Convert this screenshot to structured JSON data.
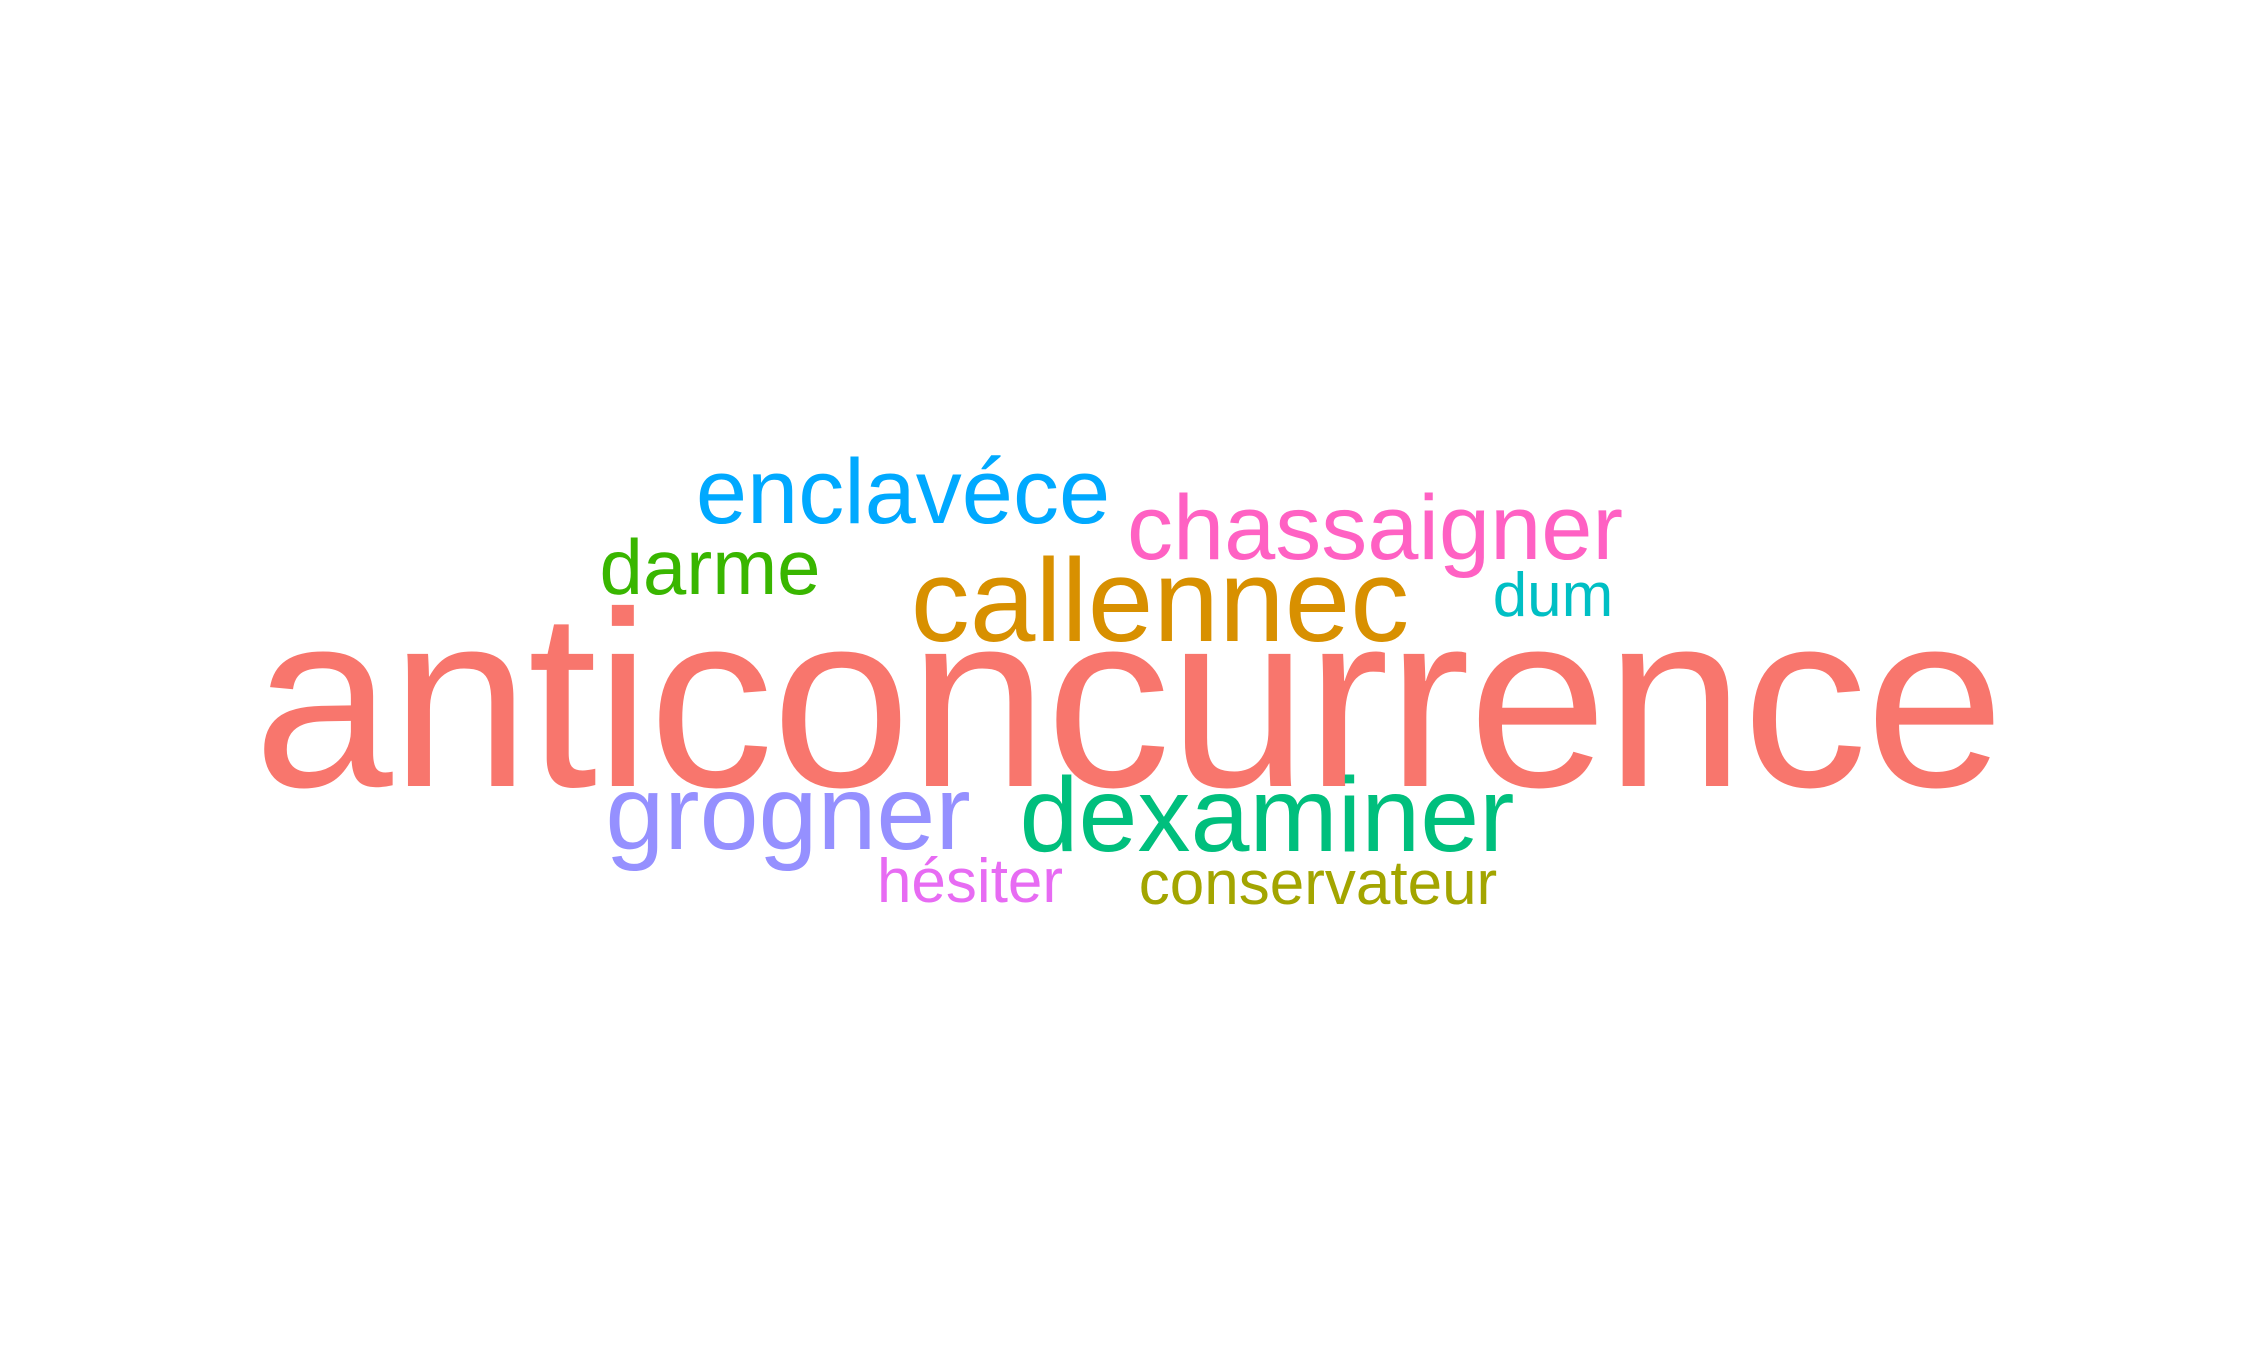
{
  "words": [
    {
      "text": "anticoncurrence",
      "color": "#F8766D"
    },
    {
      "text": "enclavéce",
      "color": "#00A9FF"
    },
    {
      "text": "chassaigner",
      "color": "#FF61C3"
    },
    {
      "text": "darme",
      "color": "#39B600"
    },
    {
      "text": "callennec",
      "color": "#D89000"
    },
    {
      "text": "dum",
      "color": "#00BFC4"
    },
    {
      "text": "grogner",
      "color": "#9590FF"
    },
    {
      "text": "dexaminer",
      "color": "#00BF7D"
    },
    {
      "text": "hésiter",
      "color": "#E76BF3"
    },
    {
      "text": "conservateur",
      "color": "#A3A500"
    }
  ]
}
